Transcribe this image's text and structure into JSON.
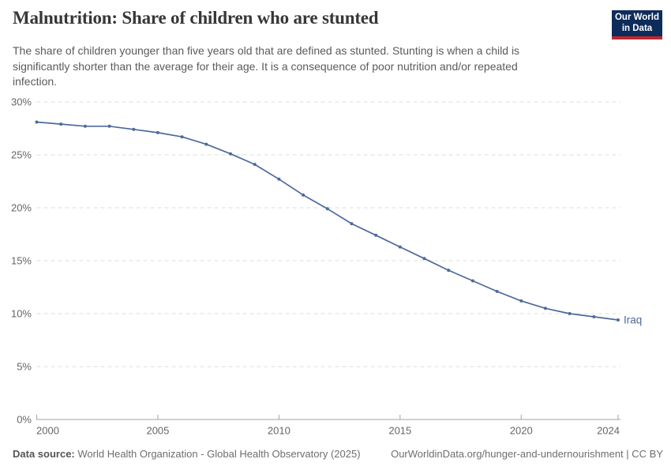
{
  "header": {
    "title": "Malnutrition: Share of children who are stunted",
    "subtitle_lines": [
      "The share of children younger than five years old that are defined as stunted. Stunting is when a child is",
      "significantly shorter than the average for their age. It is a consequence of poor nutrition and/or repeated",
      "infection."
    ],
    "logo": {
      "line1": "Our World",
      "line2": "in Data",
      "bg_color": "#0d2c5a",
      "accent_color": "#c0272d"
    }
  },
  "chart_data": {
    "type": "line",
    "title": "Malnutrition: Share of children who are stunted",
    "x": [
      2000,
      2001,
      2002,
      2003,
      2004,
      2005,
      2006,
      2007,
      2008,
      2009,
      2010,
      2011,
      2012,
      2013,
      2014,
      2015,
      2016,
      2017,
      2018,
      2019,
      2020,
      2021,
      2022,
      2023,
      2024
    ],
    "series": [
      {
        "name": "Iraq",
        "color": "#4c6a9c",
        "values": [
          28.1,
          27.9,
          27.7,
          27.7,
          27.4,
          27.1,
          26.7,
          26.0,
          25.1,
          24.1,
          22.7,
          21.2,
          19.9,
          18.5,
          17.4,
          16.3,
          15.2,
          14.1,
          13.1,
          12.1,
          11.2,
          10.5,
          10.0,
          9.7,
          9.4
        ]
      }
    ],
    "unit": "%",
    "xlim": [
      2000,
      2024
    ],
    "ylim": [
      0,
      30
    ],
    "yticks": [
      0,
      5,
      10,
      15,
      20,
      25,
      30
    ],
    "ytick_suffix": "%",
    "xticks": [
      2000,
      2005,
      2010,
      2015,
      2020,
      2024
    ],
    "grid": "horizontal-dashed",
    "legend": "line-end-label",
    "end_label": "Iraq"
  },
  "axis_style": {
    "grid_color": "#dcdcdc",
    "axis_color": "#a3a3a3",
    "tick_label_color": "#666666"
  },
  "footer": {
    "data_source_label": "Data source:",
    "data_source_text": "World Health Organization - Global Health Observatory (2025)",
    "link_text": "OurWorldinData.org/hunger-and-undernourishment | CC BY"
  }
}
